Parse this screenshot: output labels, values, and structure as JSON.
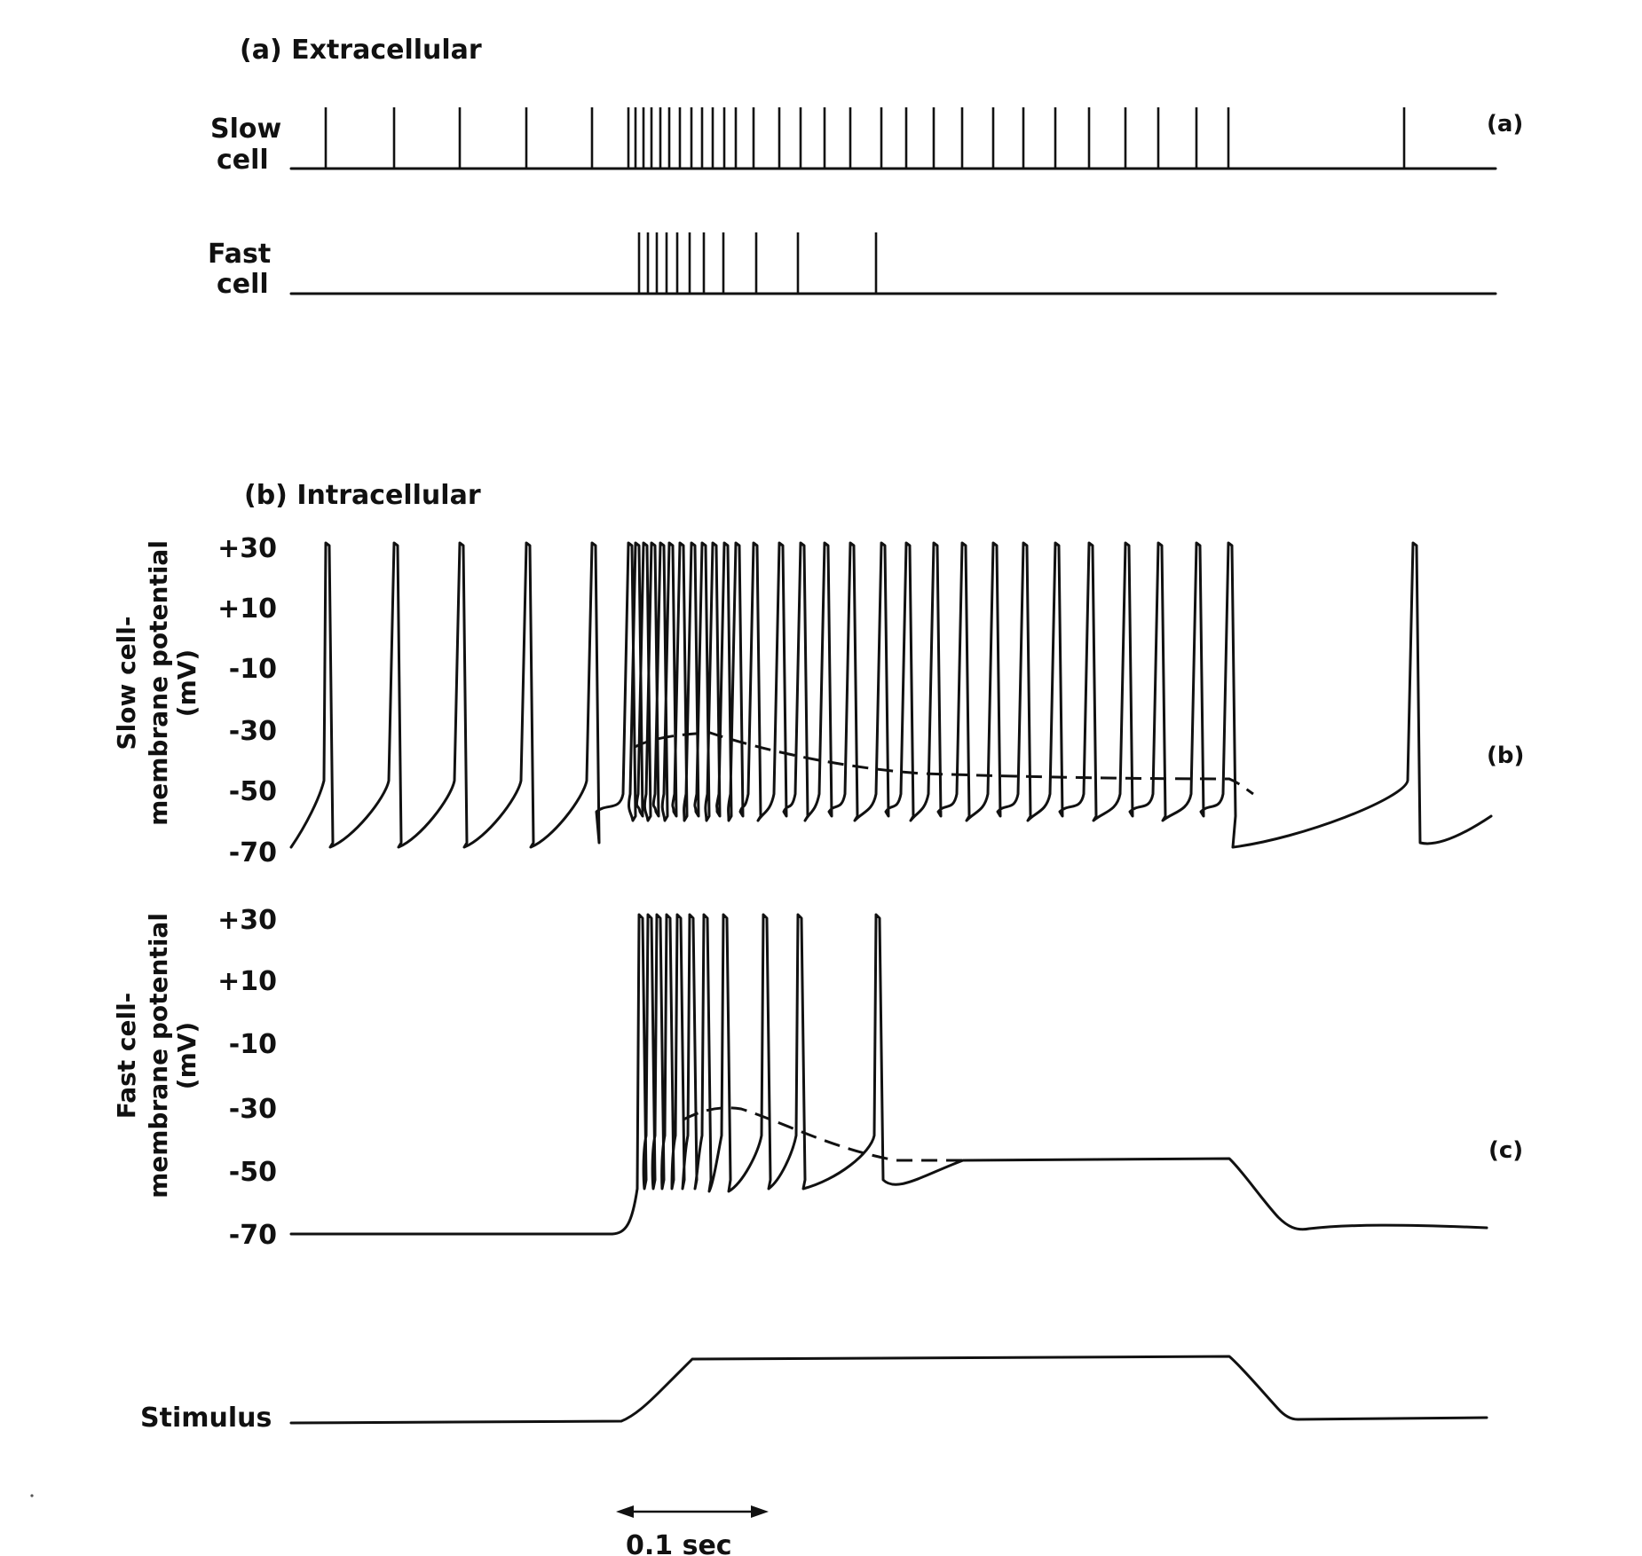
{
  "panel_a": {
    "title": "(a) Extracellular",
    "tag": "(a)",
    "slow_label_1": "Slow",
    "slow_label_2": "cell",
    "fast_label_1": "Fast",
    "fast_label_2": "cell"
  },
  "panel_b": {
    "title": "(b) Intracellular",
    "tag": "(b)",
    "ylabel_1": "Slow cell-",
    "ylabel_2": "membrane potential",
    "ylabel_3": "(mV)"
  },
  "panel_c": {
    "tag": "(c)",
    "ylabel_1": "Fast cell-",
    "ylabel_2": "membrane potential",
    "ylabel_3": "(mV)"
  },
  "stimulus_label": "Stimulus",
  "scale_bar": "0.1 sec",
  "ticks": [
    "+30",
    "+10",
    "-10",
    "-30",
    "-50",
    "-70"
  ],
  "chart_data": {
    "type": "line",
    "x_unit": "sec",
    "y_unit": "mV",
    "ylim": [
      -70,
      30
    ],
    "slow_cell_spikes": 33,
    "fast_cell_spikes": 10,
    "slow_cell_resting_potential": -70,
    "fast_cell_resting_potential": -70,
    "spike_peak": 30,
    "slow_cell_plateau": -45,
    "fast_cell_plateau": -47
  }
}
